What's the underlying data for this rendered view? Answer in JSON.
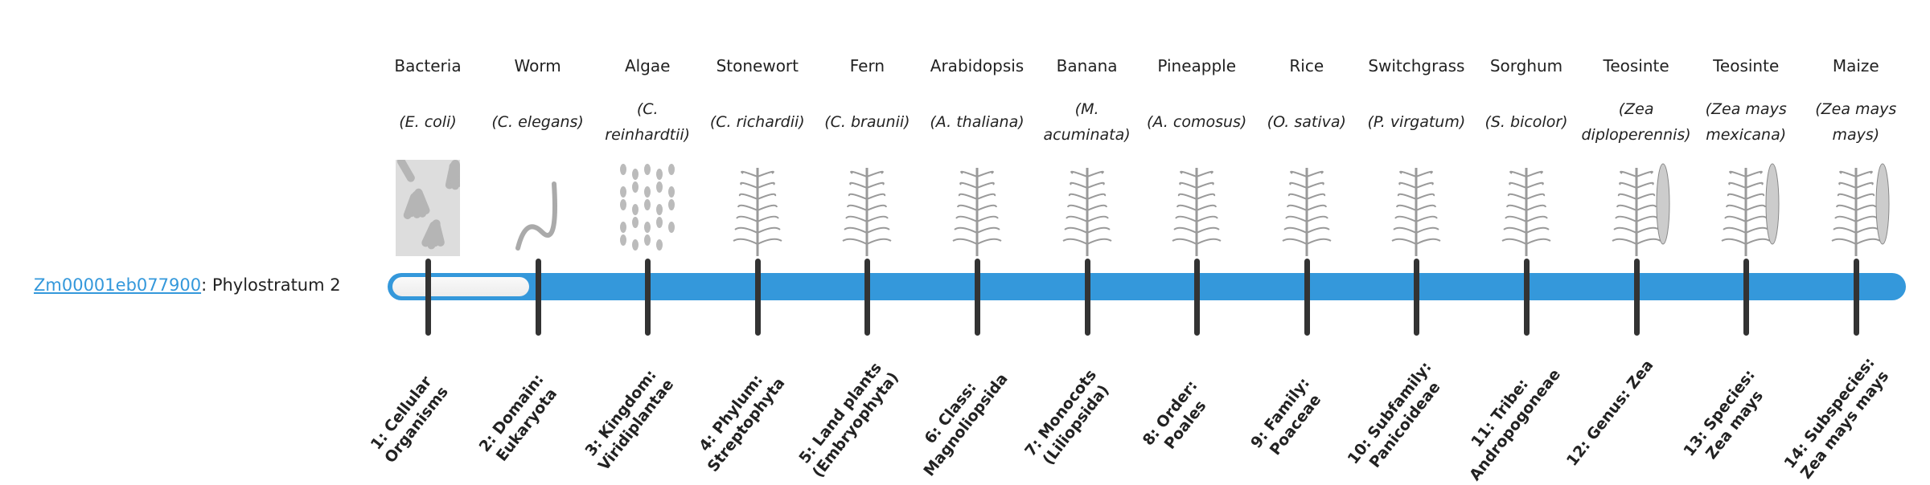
{
  "gene": {
    "id": "Zm00001eb077900",
    "suffix": ": Phylostratum 2"
  },
  "phylostratum": 2,
  "colors": {
    "bar": "#3498db",
    "tick": "#333333",
    "link": "#3498db"
  },
  "strata": [
    {
      "common": "Bacteria",
      "scientific": "(E. coli)",
      "label": "1: Cellular Organisms",
      "icon": "bacteria-image"
    },
    {
      "common": "Worm",
      "scientific": "(C. elegans)",
      "label": "2: Domain: Eukaryota",
      "icon": "worm-image"
    },
    {
      "common": "Algae",
      "scientific": "(C. reinhardtii)",
      "label": "3: Kingdom: Viridiplantae",
      "icon": "algae-image"
    },
    {
      "common": "Stonewort",
      "scientific": "(C. richardii)",
      "label": "4: Phylum: Streptophyta",
      "icon": "stonewort-image"
    },
    {
      "common": "Fern",
      "scientific": "(C. braunii)",
      "label": "5: Land plants (Embryophyta)",
      "icon": "fern-image"
    },
    {
      "common": "Arabidopsis",
      "scientific": "(A. thaliana)",
      "label": "6: Class: Magnoliopsida",
      "icon": "arabidopsis-image"
    },
    {
      "common": "Banana",
      "scientific": "(M. acuminata)",
      "label": "7: Monocots (Liliopsida)",
      "icon": "banana-image"
    },
    {
      "common": "Pineapple",
      "scientific": "(A. comosus)",
      "label": "8: Order: Poales",
      "icon": "pineapple-image"
    },
    {
      "common": "Rice",
      "scientific": "(O. sativa)",
      "label": "9: Family: Poaceae",
      "icon": "rice-image"
    },
    {
      "common": "Switchgrass",
      "scientific": "(P. virgatum)",
      "label": "10: Subfamily: Panicoideae",
      "icon": "switchgrass-image"
    },
    {
      "common": "Sorghum",
      "scientific": "(S. bicolor)",
      "label": "11: Tribe: Andropogoneae",
      "icon": "sorghum-image"
    },
    {
      "common": "Teosinte",
      "scientific": "(Zea diploperennis)",
      "label": "12: Genus: Zea",
      "icon": "teosinte-image"
    },
    {
      "common": "Teosinte",
      "scientific": "(Zea mays mexicana)",
      "label": "13: Species: Zea mays",
      "icon": "teosinte-mexicana-image"
    },
    {
      "common": "Maize",
      "scientific": "(Zea mays mays)",
      "label": "14: Subspecies: Zea mays mays",
      "icon": "maize-image"
    }
  ]
}
